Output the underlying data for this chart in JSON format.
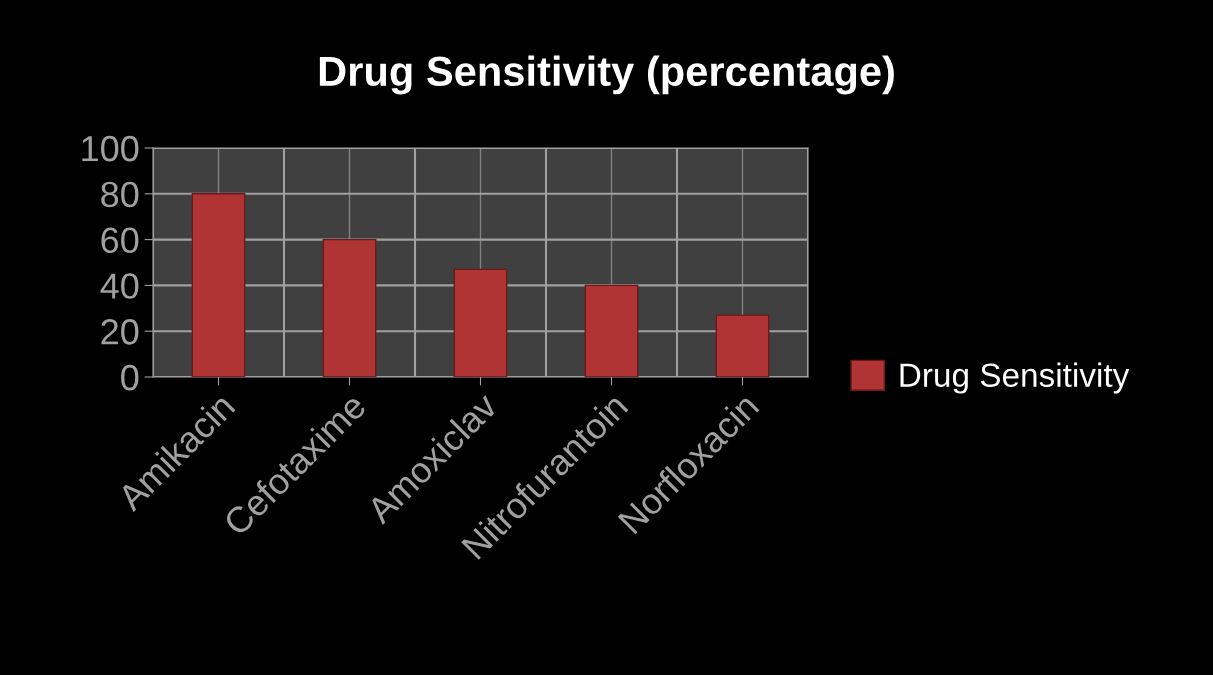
{
  "chart_data": {
    "type": "bar",
    "title": "Drug Sensitivity (percentage)",
    "categories": [
      "Amikacin",
      "Cefotaxime",
      "Amoxiclav",
      "Nitrofurantoin",
      "Norfloxacin"
    ],
    "series": [
      {
        "name": "Drug Sensitivity",
        "color": "#b03434",
        "values": [
          80,
          60,
          47,
          40,
          27
        ]
      }
    ],
    "ylim": [
      0,
      100
    ],
    "yticks": [
      0,
      20,
      40,
      60,
      80,
      100
    ],
    "grid": true,
    "legend": "right"
  }
}
